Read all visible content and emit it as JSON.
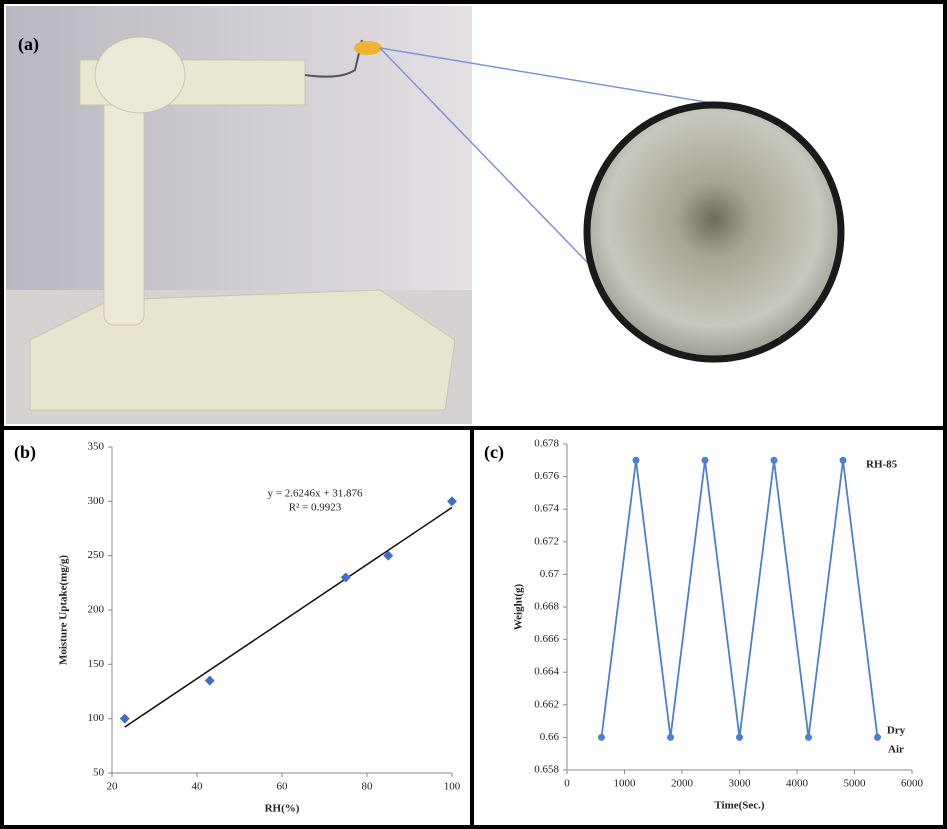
{
  "photo": {
    "label": "(a)"
  },
  "chart_data": [
    {
      "type": "scatter",
      "label": "(b)",
      "x_label": "RH(%)",
      "y_label": "Moisture Uptake(mg/g)",
      "x": [
        23,
        43,
        75,
        85,
        100
      ],
      "values": [
        100,
        135,
        230,
        250,
        300
      ],
      "color": "#3d6fc9",
      "xlim": [
        20,
        100
      ],
      "xticks": [
        20,
        40,
        60,
        80,
        100
      ],
      "ylim": [
        50,
        350
      ],
      "yticks": [
        50,
        100,
        150,
        200,
        250,
        300,
        350
      ],
      "trendline": {
        "slope": 2.6246,
        "intercept": 31.876,
        "label": "y = 2.6246x + 31.876",
        "color": "#111111"
      },
      "r2_label": "R² = 0.9923"
    },
    {
      "type": "line",
      "label": "(c)",
      "x_label": "Time(Sec.)",
      "y_label": "Weight(g)",
      "x": [
        600,
        1200,
        1800,
        2400,
        3000,
        3600,
        4200,
        4800,
        5400
      ],
      "values": [
        0.66,
        0.677,
        0.66,
        0.677,
        0.66,
        0.677,
        0.66,
        0.677,
        0.66
      ],
      "color": "#4a7fd4",
      "xlim": [
        0,
        6000
      ],
      "xticks": [
        0,
        1000,
        2000,
        3000,
        4000,
        5000,
        6000
      ],
      "ylim": [
        0.658,
        0.678
      ],
      "yticks": [
        0.658,
        0.66,
        0.662,
        0.664,
        0.666,
        0.668,
        0.67,
        0.672,
        0.674,
        0.676,
        0.678
      ],
      "annotations": [
        "RH-85",
        "Dry",
        "Air"
      ]
    }
  ]
}
